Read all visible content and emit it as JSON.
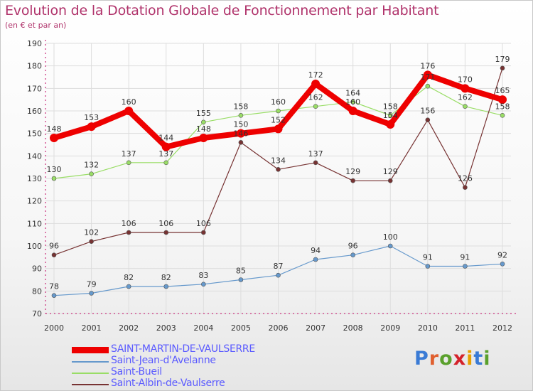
{
  "title": "Evolution de la Dotation Globale de Fonctionnement par Habitant",
  "subtitle": "(en € et par an)",
  "chart_data": {
    "type": "line",
    "ylim": [
      70,
      190
    ],
    "yticks": [
      70,
      80,
      90,
      100,
      110,
      120,
      130,
      140,
      150,
      160,
      170,
      180,
      190
    ],
    "x": [
      "2000",
      "2001",
      "2002",
      "2003",
      "2004",
      "2005",
      "2006",
      "2007",
      "2008",
      "2009",
      "2010",
      "2011",
      "2012"
    ],
    "grid": true,
    "legend_position": "bottom-left",
    "series": [
      {
        "name": "SAINT-MARTIN-DE-VAULSERRE",
        "color": "#ee0000",
        "values": [
          148,
          153,
          160,
          144,
          148,
          150,
          152,
          172,
          160,
          154,
          176,
          170,
          165
        ]
      },
      {
        "name": "Saint-Jean-d'Avelanne",
        "color": "#6699cc",
        "values": [
          78,
          79,
          82,
          82,
          83,
          85,
          87,
          94,
          96,
          100,
          91,
          91,
          92
        ]
      },
      {
        "name": "Saint-Bueil",
        "color": "#99dd66",
        "values": [
          130,
          132,
          137,
          137,
          155,
          158,
          160,
          162,
          164,
          158,
          171,
          162,
          158
        ]
      },
      {
        "name": "Saint-Albin-de-Vaulserre",
        "color": "#773333",
        "values": [
          96,
          102,
          106,
          106,
          106,
          146,
          134,
          137,
          129,
          129,
          156,
          126,
          179
        ]
      }
    ],
    "value_labels": [
      [
        "148",
        "153",
        "160",
        "144",
        "148",
        "150",
        "152",
        "172",
        "160",
        "154",
        "176",
        "170",
        "165"
      ],
      [
        "78",
        "79",
        "82",
        "82",
        "83",
        "85",
        "87",
        "94",
        "96",
        "100",
        "91",
        "91",
        "92"
      ],
      [
        "130",
        "132",
        "137",
        "137",
        "155",
        "158",
        "160",
        "162",
        "164",
        "158",
        "171",
        "162",
        "158"
      ],
      [
        "96",
        "102",
        "106",
        "106",
        "106",
        "146",
        "134",
        "137",
        "129",
        "129",
        "156",
        "126",
        "179"
      ]
    ]
  },
  "logo": {
    "text": "Proxiti"
  }
}
